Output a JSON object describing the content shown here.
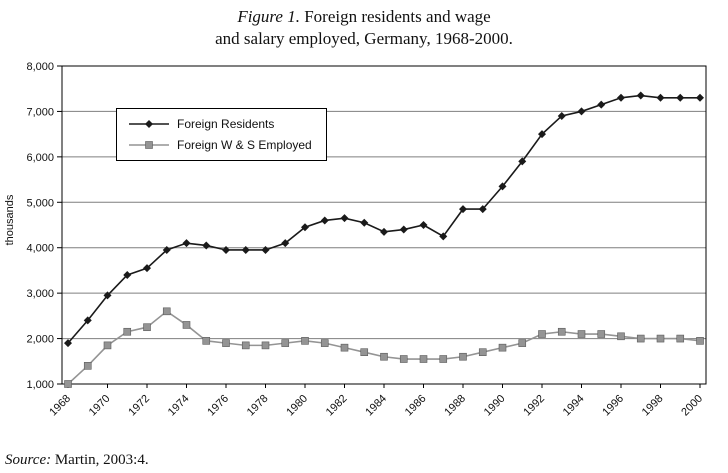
{
  "title": {
    "figure_label": "Figure 1.",
    "line1": " Foreign residents and wage",
    "line2": "and salary employed, Germany, 1968-2000."
  },
  "source": {
    "label": "Source:",
    "text": " Martin, 2003:4."
  },
  "chart_data": {
    "type": "line",
    "title": "Figure 1. Foreign residents and wage and salary employed, Germany, 1968-2000.",
    "xlabel": "",
    "ylabel": "thousands",
    "ylim": [
      1000,
      8000
    ],
    "yticks": [
      1000,
      2000,
      3000,
      4000,
      5000,
      6000,
      7000,
      8000
    ],
    "ytick_labels": [
      "1,000",
      "2,000",
      "3,000",
      "4,000",
      "5,000",
      "6,000",
      "7,000",
      "8,000"
    ],
    "x": [
      1968,
      1969,
      1970,
      1971,
      1972,
      1973,
      1974,
      1975,
      1976,
      1977,
      1978,
      1979,
      1980,
      1981,
      1982,
      1983,
      1984,
      1985,
      1986,
      1987,
      1988,
      1989,
      1990,
      1991,
      1992,
      1993,
      1994,
      1995,
      1996,
      1997,
      1998,
      1999,
      2000
    ],
    "xticks": [
      1968,
      1970,
      1972,
      1974,
      1976,
      1978,
      1980,
      1982,
      1984,
      1986,
      1988,
      1990,
      1992,
      1994,
      1996,
      1998,
      2000
    ],
    "grid": true,
    "legend_position": "upper-left-inside",
    "series": [
      {
        "name": "Foreign Residents",
        "marker": "diamond",
        "color": "#1a1a1a",
        "values": [
          1900,
          2400,
          2950,
          3400,
          3550,
          3950,
          4100,
          4050,
          3950,
          3950,
          3950,
          4100,
          4450,
          4600,
          4650,
          4550,
          4350,
          4400,
          4500,
          4250,
          4850,
          4850,
          5350,
          5900,
          6500,
          6900,
          7000,
          7150,
          7300,
          7350,
          7300,
          7300,
          7300
        ]
      },
      {
        "name": "Foreign W & S Employed",
        "marker": "square",
        "color": "#949494",
        "values": [
          1000,
          1400,
          1850,
          2150,
          2250,
          2600,
          2300,
          1950,
          1900,
          1850,
          1850,
          1900,
          1950,
          1900,
          1800,
          1700,
          1600,
          1550,
          1550,
          1550,
          1600,
          1700,
          1800,
          1900,
          2100,
          2150,
          2100,
          2100,
          2050,
          2000,
          2000,
          2000,
          1950
        ]
      }
    ]
  }
}
